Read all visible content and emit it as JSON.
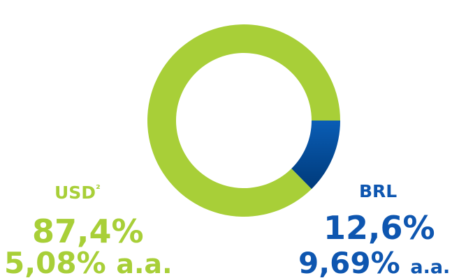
{
  "chart_data": {
    "type": "pie",
    "donut": true,
    "slices": [
      {
        "name": "USD²",
        "base_name": "USD",
        "superscript": "²",
        "value": 87.4,
        "value_label": "87,4%",
        "rate": "5,08%",
        "rate_suffix": "a.a.",
        "color": "#a8cf38"
      },
      {
        "name": "BRL",
        "value": 12.6,
        "value_label": "12,6%",
        "rate": "9,69%",
        "rate_suffix": "a.a.",
        "color": "#0a5db5",
        "color_dark": "#003a7a"
      }
    ]
  },
  "colors": {
    "usd": "#a8cf38",
    "brl": "#0e56b0"
  }
}
